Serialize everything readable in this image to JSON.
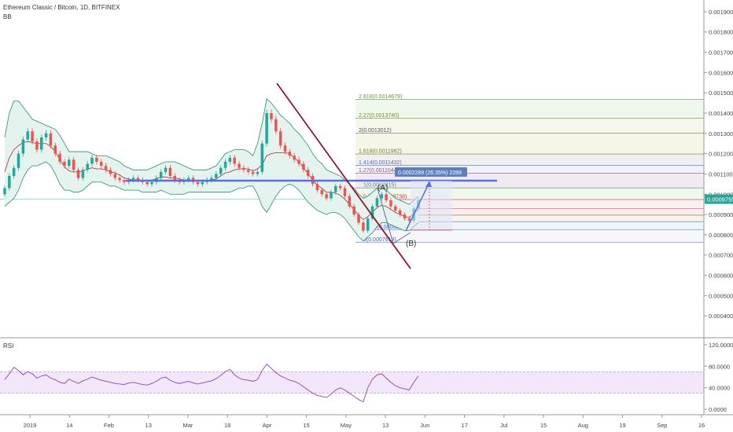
{
  "header": {
    "title": "Ethereum Classic / Bitcoin, 1D, BITFINEX",
    "indicator": "BB"
  },
  "rsi_panel": {
    "label": "RSI"
  },
  "colors": {
    "bull": "#26a69a",
    "bear": "#ef5350",
    "trendline": "#8b1a2b",
    "support_line": "#5b6ee1",
    "bb_fill": "#e4f3ee",
    "rsi_band": "#f2e6fa",
    "rsi_line": "#8e44ad",
    "measure_box": "#5d7fbf"
  },
  "chart_data": [
    {
      "type": "candlestick",
      "price_axis": {
        "ylim": [
          0.0003,
          0.00195
        ],
        "ticks": [
          "0.0019000",
          "0.0018000",
          "0.0017000",
          "0.0016000",
          "0.0015000",
          "0.0014000",
          "0.0013000",
          "0.0012000",
          "0.0011000",
          "0.0010000",
          "0.0009000",
          "0.0008000",
          "0.0007000",
          "0.0006000",
          "0.0005000",
          "0.0004000"
        ],
        "current_price_label": "0.0009755"
      },
      "time_axis": {
        "ticks": [
          "2019",
          "14",
          "Feb",
          "13",
          "Mar",
          "18",
          "Apr",
          "15",
          "May",
          "13",
          "Jun",
          "17",
          "Jul",
          "15",
          "Aug",
          "19",
          "Sep",
          "16"
        ]
      },
      "close_path": [
        0.00103,
        0.00109,
        0.00113,
        0.0012,
        0.00127,
        0.00131,
        0.00126,
        0.00122,
        0.00128,
        0.0013,
        0.00124,
        0.0012,
        0.00116,
        0.00114,
        0.00117,
        0.00112,
        0.00108,
        0.00112,
        0.00115,
        0.00118,
        0.00116,
        0.00114,
        0.00112,
        0.0011,
        0.00108,
        0.00107,
        0.00106,
        0.00107,
        0.00108,
        0.00107,
        0.00106,
        0.00105,
        0.00106,
        0.00108,
        0.00111,
        0.00113,
        0.00109,
        0.00107,
        0.00106,
        0.00107,
        0.00108,
        0.00106,
        0.00105,
        0.00106,
        0.00107,
        0.00108,
        0.0011,
        0.00113,
        0.00116,
        0.00118,
        0.00115,
        0.00113,
        0.00112,
        0.00111,
        0.0011,
        0.00111,
        0.00125,
        0.0014,
        0.00137,
        0.00131,
        0.00124,
        0.00121,
        0.00119,
        0.00117,
        0.00115,
        0.00112,
        0.00109,
        0.00105,
        0.00102,
        0.001,
        0.00098,
        0.00101,
        0.00104,
        0.00103,
        0.00099,
        0.00094,
        0.0009,
        0.00086,
        0.00082,
        0.00088,
        0.00094,
        0.00098,
        0.001,
        0.00097,
        0.00094,
        0.00092,
        0.0009,
        0.00088,
        0.00087,
        0.00093,
        0.00097
      ],
      "bollinger": {
        "upper": [
          0.00128,
          0.0014,
          0.00146,
          0.00146,
          0.00143,
          0.0014,
          0.00137,
          0.00136,
          0.00135,
          0.00134,
          0.00133,
          0.00132,
          0.00129,
          0.00125,
          0.00121,
          0.00121,
          0.00121,
          0.00121,
          0.00121,
          0.0012,
          0.00119,
          0.00119,
          0.00119,
          0.00118,
          0.00117,
          0.00116,
          0.00114,
          0.00113,
          0.00112,
          0.00112,
          0.00112,
          0.00112,
          0.00113,
          0.00114,
          0.00115,
          0.00116,
          0.00116,
          0.00116,
          0.00115,
          0.00114,
          0.00113,
          0.00112,
          0.00112,
          0.00112,
          0.00112,
          0.00113,
          0.00114,
          0.00117,
          0.0012,
          0.00121,
          0.00122,
          0.00122,
          0.00122,
          0.00121,
          0.00119,
          0.00125,
          0.00135,
          0.00147,
          0.00145,
          0.00142,
          0.00139,
          0.00137,
          0.00135,
          0.00132,
          0.0013,
          0.00127,
          0.00124,
          0.0012,
          0.00117,
          0.00115,
          0.00112,
          0.00111,
          0.0011,
          0.00109,
          0.00107,
          0.00105,
          0.00103,
          0.001,
          0.00098,
          0.00099,
          0.00101,
          0.00103,
          0.00103,
          0.00102,
          0.001,
          0.00098,
          0.00097,
          0.00096,
          0.00095,
          0.00097,
          0.00099
        ],
        "lower": [
          0.00094,
          0.00096,
          0.00098,
          0.00102,
          0.00108,
          0.00112,
          0.00114,
          0.00114,
          0.00115,
          0.00116,
          0.00114,
          0.0011,
          0.00105,
          0.00102,
          0.00102,
          0.00101,
          0.00101,
          0.00102,
          0.00104,
          0.00106,
          0.00106,
          0.00106,
          0.00105,
          0.00104,
          0.00104,
          0.00103,
          0.00102,
          0.00102,
          0.00102,
          0.00102,
          0.00101,
          0.00101,
          0.00101,
          0.00101,
          0.00102,
          0.00101,
          0.001,
          0.001,
          0.001,
          0.001,
          0.00101,
          0.00101,
          0.00101,
          0.00101,
          0.00101,
          0.00101,
          0.00101,
          0.00101,
          0.00101,
          0.00101,
          0.00102,
          0.00103,
          0.00103,
          0.00104,
          0.00104,
          0.001,
          0.00094,
          0.00091,
          0.00095,
          0.00099,
          0.00102,
          0.00104,
          0.00105,
          0.00104,
          0.00102,
          0.00099,
          0.00096,
          0.00094,
          0.00092,
          0.00091,
          0.0009,
          0.00091,
          0.00091,
          0.0009,
          0.00088,
          0.00085,
          0.00082,
          0.00079,
          0.00077,
          0.00079,
          0.00081,
          0.00084,
          0.00086,
          0.00086,
          0.00085,
          0.00084,
          0.00083,
          0.00082,
          0.00082,
          0.00084,
          0.00086
        ]
      },
      "annotations": {
        "fib_levels": [
          {
            "label": "2.618(0.0014679)",
            "value": 0.0014679
          },
          {
            "label": "2.27(0.0013740)",
            "value": 0.001374
          },
          {
            "label": "2(0.0013012)",
            "value": 0.0013012
          },
          {
            "label": "1.618(0.0011982)",
            "value": 0.0011982
          },
          {
            "label": "1.414(0.0011432)",
            "value": 0.0011432
          },
          {
            "label": "1.27(0.0011044)",
            "value": 0.0011044
          },
          {
            "label": "1(0.0010315)",
            "value": 0.0010315
          },
          {
            "label": "0.786(0.0009738)",
            "value": 0.0009738
          },
          {
            "label": "0.618(0.0009284)",
            "value": 0.0009284
          },
          {
            "label": "0.5(0.0008966)",
            "value": 0.0008966
          },
          {
            "label": "0.382(0.0008649)",
            "value": 0.0008649
          },
          {
            "label": "0.236(0.0008253)",
            "value": 0.0008253
          },
          {
            "label": "0(0.0007619)",
            "value": 0.0007619
          }
        ],
        "measure_label": "0.0002289 (26.35%) 2289",
        "wave_labels": [
          "(A)",
          "(B)"
        ]
      }
    },
    {
      "type": "line",
      "name": "RSI",
      "ylim": [
        -10,
        130
      ],
      "ticks": [
        "120.0000",
        "80.0000",
        "40.0000",
        "0.0000"
      ],
      "band": [
        30,
        70
      ],
      "values": [
        55,
        66,
        78,
        72,
        64,
        70,
        66,
        58,
        62,
        64,
        58,
        55,
        50,
        48,
        56,
        52,
        48,
        53,
        56,
        60,
        57,
        54,
        52,
        50,
        48,
        47,
        46,
        49,
        50,
        48,
        46,
        45,
        48,
        52,
        58,
        60,
        54,
        50,
        48,
        50,
        52,
        49,
        47,
        49,
        51,
        53,
        57,
        63,
        70,
        74,
        64,
        58,
        55,
        54,
        52,
        55,
        72,
        84,
        76,
        68,
        62,
        58,
        54,
        52,
        48,
        42,
        36,
        30,
        26,
        24,
        22,
        28,
        36,
        40,
        36,
        30,
        24,
        18,
        14,
        40,
        56,
        64,
        66,
        58,
        50,
        44,
        40,
        38,
        36,
        50,
        62
      ]
    }
  ]
}
